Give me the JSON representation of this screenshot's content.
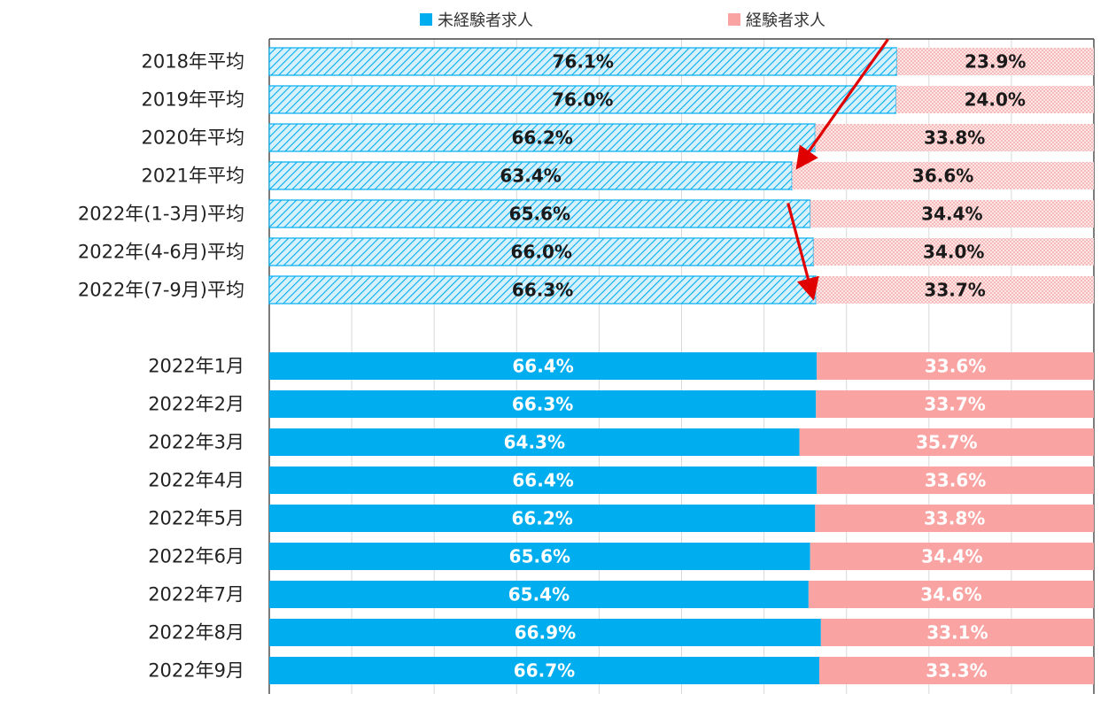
{
  "chart_data": {
    "type": "stacked-bar-horizontal-100",
    "legend": [
      {
        "name": "未経験者求人",
        "color": "#00AEEF"
      },
      {
        "name": "経験者求人",
        "color": "#F9A3A3"
      }
    ],
    "groups": [
      {
        "name": "averages",
        "style": "hatched",
        "categories": [
          "2018年平均",
          "2019年平均",
          "2020年平均",
          "2021年平均",
          "2022年(1-3月)平均",
          "2022年(4-6月)平均",
          "2022年(7-9月)平均"
        ],
        "series": [
          {
            "name": "未経験者求人",
            "values": [
              76.1,
              76.0,
              66.2,
              63.4,
              65.6,
              66.0,
              66.3
            ],
            "labels": [
              "76.1%",
              "76.0%",
              "66.2%",
              "63.4%",
              "65.6%",
              "66.0%",
              "66.3%"
            ]
          },
          {
            "name": "経験者求人",
            "values": [
              23.9,
              24.0,
              33.8,
              36.6,
              34.4,
              34.0,
              33.7
            ],
            "labels": [
              "23.9%",
              "24.0%",
              "33.8%",
              "36.6%",
              "34.4%",
              "34.0%",
              "33.7%"
            ]
          }
        ]
      },
      {
        "name": "monthly",
        "style": "solid",
        "categories": [
          "2022年1月",
          "2022年2月",
          "2022年3月",
          "2022年4月",
          "2022年5月",
          "2022年6月",
          "2022年7月",
          "2022年8月",
          "2022年9月"
        ],
        "series": [
          {
            "name": "未経験者求人",
            "values": [
              66.4,
              66.3,
              64.3,
              66.4,
              66.2,
              65.6,
              65.4,
              66.9,
              66.7
            ],
            "labels": [
              "66.4%",
              "66.3%",
              "64.3%",
              "66.4%",
              "66.2%",
              "65.6%",
              "65.4%",
              "66.9%",
              "66.7%"
            ]
          },
          {
            "name": "経験者求人",
            "values": [
              33.6,
              33.7,
              35.7,
              33.6,
              33.8,
              34.4,
              34.6,
              33.1,
              33.3
            ],
            "labels": [
              "33.6%",
              "33.7%",
              "35.7%",
              "33.6%",
              "33.8%",
              "34.4%",
              "34.6%",
              "33.1%",
              "33.3%"
            ]
          }
        ]
      }
    ],
    "xlim": [
      0,
      100
    ],
    "grid": true,
    "annotations": [
      {
        "type": "arrow",
        "from_category": "2018年平均",
        "to_category": "2021年平均",
        "color": "#E00000"
      },
      {
        "type": "arrow",
        "from_category": "2022年(1-3月)平均",
        "to_category": "2022年(7-9月)平均",
        "color": "#E00000"
      }
    ]
  }
}
